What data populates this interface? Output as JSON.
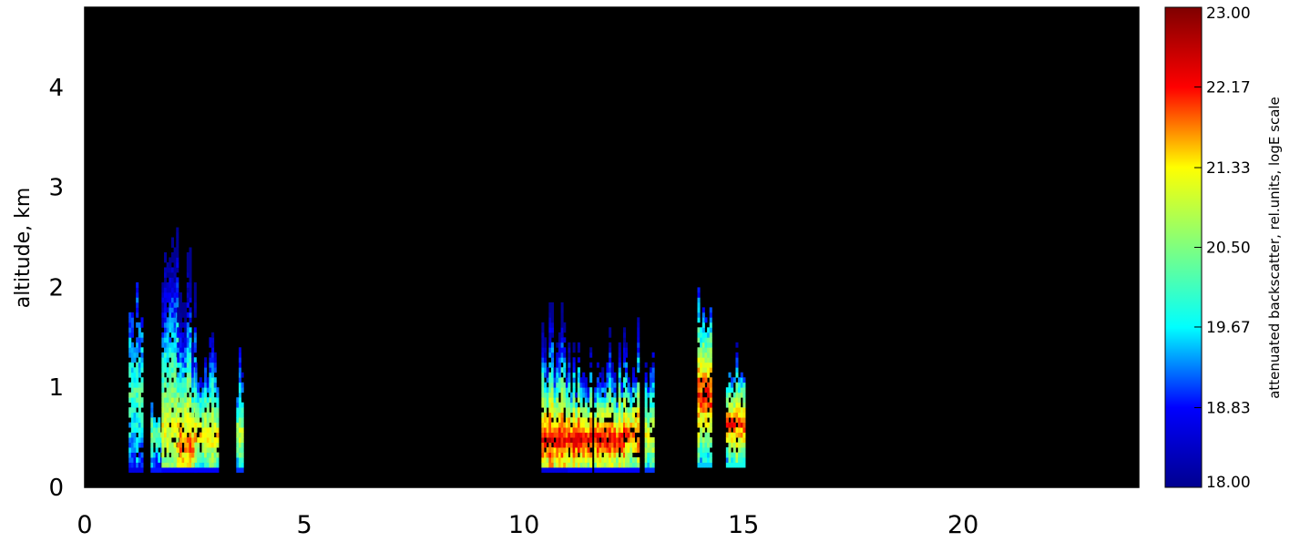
{
  "chart_data": {
    "type": "heatmap",
    "title": "",
    "xlabel": "",
    "ylabel": "altitude, km",
    "xlim": [
      0,
      24
    ],
    "ylim": [
      0,
      4.8
    ],
    "x_ticks": [
      0,
      5,
      10,
      15,
      20
    ],
    "x_tick_labels": [
      "0",
      "5",
      "10",
      "15",
      "20"
    ],
    "y_ticks": [
      0,
      1,
      2,
      3,
      4
    ],
    "y_tick_labels": [
      "0",
      "1",
      "2",
      "3",
      "4"
    ],
    "background_color": "#000000",
    "colorbar": {
      "label": "attenuated backscatter, rel.units, logE scale",
      "range": [
        18.0,
        23.0
      ],
      "tick_labels": [
        "23.00",
        "22.17",
        "21.33",
        "20.50",
        "19.67",
        "18.83",
        "18.00"
      ],
      "tick_values": [
        23.0,
        22.17,
        21.33,
        20.5,
        19.67,
        18.83,
        18.0
      ],
      "colormap": [
        "#00008f",
        "#0000ff",
        "#00ffff",
        "#7fff7f",
        "#ffff00",
        "#ff0000",
        "#7f0000"
      ]
    },
    "cloud_columns": [
      {
        "x": [
          1.0,
          1.3
        ],
        "top": 2.1,
        "base": 0.15,
        "bottom_value": 18.6,
        "peak_value": 20.2,
        "peak_alt": 0.9
      },
      {
        "x": [
          1.5,
          1.75
        ],
        "top": 1.05,
        "base": 0.15,
        "bottom_value": 18.9,
        "peak_value": 20.5,
        "peak_alt": 0.5
      },
      {
        "x": [
          1.75,
          2.1
        ],
        "top": 2.7,
        "base": 0.15,
        "bottom_value": 18.8,
        "peak_value": 21.2,
        "peak_alt": 0.55
      },
      {
        "x": [
          2.1,
          2.5
        ],
        "top": 2.4,
        "base": 0.15,
        "bottom_value": 18.8,
        "peak_value": 21.8,
        "peak_alt": 0.4
      },
      {
        "x": [
          2.5,
          3.0
        ],
        "top": 1.6,
        "base": 0.15,
        "bottom_value": 18.8,
        "peak_value": 21.4,
        "peak_alt": 0.5
      },
      {
        "x": [
          3.45,
          3.6
        ],
        "top": 1.45,
        "base": 0.15,
        "bottom_value": 19.0,
        "peak_value": 21.0,
        "peak_alt": 0.5
      },
      {
        "x": [
          10.4,
          11.0
        ],
        "top": 1.9,
        "base": 0.15,
        "bottom_value": 18.6,
        "peak_value": 22.3,
        "peak_alt": 0.45
      },
      {
        "x": [
          11.0,
          11.55
        ],
        "top": 1.5,
        "base": 0.15,
        "bottom_value": 18.8,
        "peak_value": 22.4,
        "peak_alt": 0.45
      },
      {
        "x": [
          11.6,
          12.3
        ],
        "top": 1.6,
        "base": 0.15,
        "bottom_value": 18.8,
        "peak_value": 22.3,
        "peak_alt": 0.45
      },
      {
        "x": [
          12.3,
          12.6
        ],
        "top": 1.7,
        "base": 0.15,
        "bottom_value": 18.8,
        "peak_value": 22.0,
        "peak_alt": 0.5
      },
      {
        "x": [
          12.75,
          12.95
        ],
        "top": 1.5,
        "base": 0.15,
        "bottom_value": 19.0,
        "peak_value": 21.2,
        "peak_alt": 0.5
      },
      {
        "x": [
          13.95,
          14.25
        ],
        "top": 2.05,
        "base": 0.2,
        "bottom_value": 19.5,
        "peak_value": 22.2,
        "peak_alt": 0.9
      },
      {
        "x": [
          14.6,
          15.0
        ],
        "top": 1.45,
        "base": 0.2,
        "bottom_value": 19.8,
        "peak_value": 22.0,
        "peak_alt": 0.6
      }
    ]
  }
}
